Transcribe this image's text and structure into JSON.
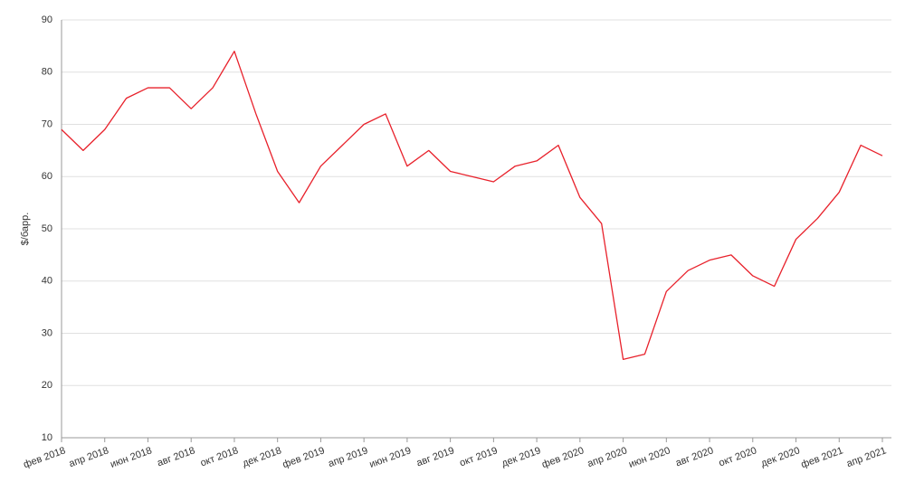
{
  "chart_data": {
    "type": "line",
    "ylabel": "$/барр.",
    "x": [
      "2018-02",
      "2018-03",
      "2018-04",
      "2018-05",
      "2018-06",
      "2018-07",
      "2018-08",
      "2018-09",
      "2018-10",
      "2018-11",
      "2018-12",
      "2019-01",
      "2019-02",
      "2019-03",
      "2019-04",
      "2019-05",
      "2019-06",
      "2019-07",
      "2019-08",
      "2019-09",
      "2019-10",
      "2019-11",
      "2019-12",
      "2020-01",
      "2020-02",
      "2020-03",
      "2020-04",
      "2020-05",
      "2020-06",
      "2020-07",
      "2020-08",
      "2020-09",
      "2020-10",
      "2020-11",
      "2020-12",
      "2021-01",
      "2021-02",
      "2021-03",
      "2021-04"
    ],
    "series": [
      {
        "color": "#e8212b",
        "values": [
          69,
          65,
          69,
          75,
          77,
          77,
          73,
          77,
          84,
          72,
          61,
          55,
          62,
          66,
          70,
          72,
          62,
          65,
          61,
          60,
          59,
          62,
          63,
          66,
          56,
          51,
          25,
          26,
          38,
          42,
          44,
          45,
          41,
          39,
          48,
          52,
          57,
          66,
          64
        ]
      }
    ],
    "xlim": [
      "2018-02",
      "2021-04"
    ],
    "xticks": [
      {
        "value": "2018-02",
        "label": "фев 2018"
      },
      {
        "value": "2018-04",
        "label": "апр 2018"
      },
      {
        "value": "2018-06",
        "label": "июн 2018"
      },
      {
        "value": "2018-08",
        "label": "авг 2018"
      },
      {
        "value": "2018-10",
        "label": "окт 2018"
      },
      {
        "value": "2018-12",
        "label": "дек 2018"
      },
      {
        "value": "2019-02",
        "label": "фев 2019"
      },
      {
        "value": "2019-04",
        "label": "апр 2019"
      },
      {
        "value": "2019-06",
        "label": "июн 2019"
      },
      {
        "value": "2019-08",
        "label": "авг 2019"
      },
      {
        "value": "2019-10",
        "label": "окт 2019"
      },
      {
        "value": "2019-12",
        "label": "дек 2019"
      },
      {
        "value": "2020-02",
        "label": "фев 2020"
      },
      {
        "value": "2020-04",
        "label": "апр 2020"
      },
      {
        "value": "2020-06",
        "label": "июн 2020"
      },
      {
        "value": "2020-08",
        "label": "авг 2020"
      },
      {
        "value": "2020-10",
        "label": "окт 2020"
      },
      {
        "value": "2020-12",
        "label": "дек 2020"
      },
      {
        "value": "2021-02",
        "label": "фев 2021"
      },
      {
        "value": "2021-04",
        "label": "апр 2021"
      }
    ],
    "ylim": [
      10,
      90
    ],
    "yticks": [
      10,
      20,
      30,
      40,
      50,
      60,
      70,
      80,
      90
    ],
    "grid": true
  }
}
